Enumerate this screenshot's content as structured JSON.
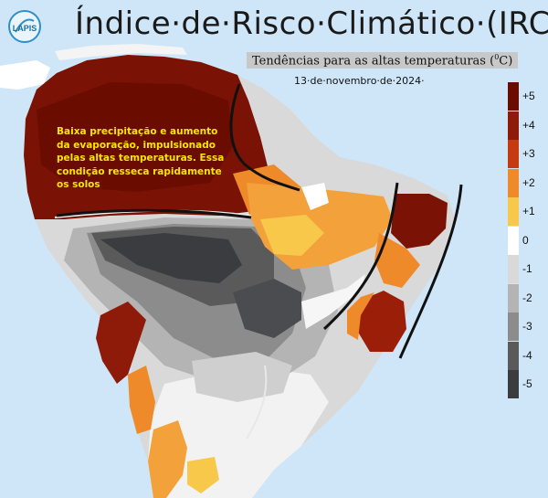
{
  "header": {
    "title": "Índice·de·Risco·Climático·(IRC)",
    "subtitle": "Tendências para as altas temperaturas (",
    "subtitle_sup": "0",
    "subtitle_end": "C)",
    "date": "13·de·novembro·de·2024·",
    "logo_text": "LAPIS"
  },
  "annotation": {
    "text": "Baixa precipitação e aumento da evaporação, impulsionado pelas altas temperaturas. Essa condição resseca rapidamente os solos"
  },
  "legend": {
    "items": [
      {
        "label": "+5",
        "color": "#6b0c00"
      },
      {
        "label": "+4",
        "color": "#8e1a0a"
      },
      {
        "label": "+3",
        "color": "#c63a10"
      },
      {
        "label": "+2",
        "color": "#ee8a2a"
      },
      {
        "label": "+1",
        "color": "#f8c84a"
      },
      {
        "label": "0",
        "color": "#ffffff"
      },
      {
        "label": "-1",
        "color": "#d9d9d9"
      },
      {
        "label": "-2",
        "color": "#b4b4b4"
      },
      {
        "label": "-3",
        "color": "#8c8c8c"
      },
      {
        "label": "-4",
        "color": "#5a5a5a"
      },
      {
        "label": "-5",
        "color": "#3a3c40"
      }
    ]
  },
  "colors": {
    "ocean": "#cfe6f8",
    "annotation_text": "#ffe600"
  }
}
